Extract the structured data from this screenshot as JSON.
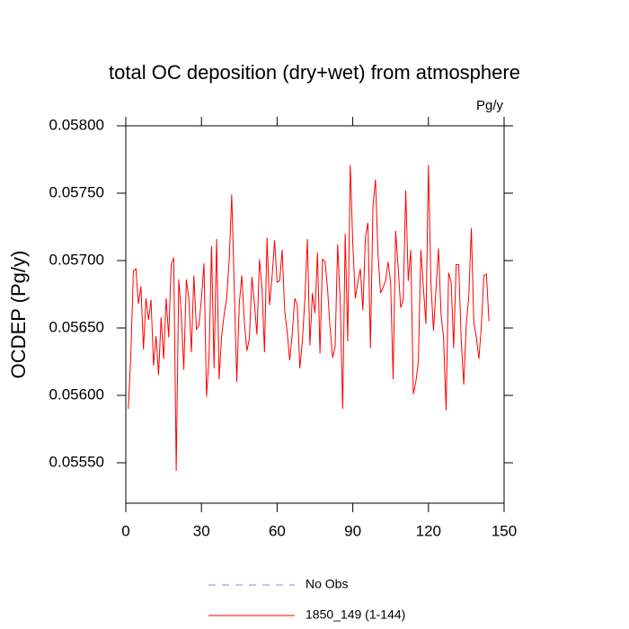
{
  "chart_data": {
    "type": "line",
    "title": "total OC deposition (dry+wet) from atmosphere",
    "units": "Pg/y",
    "y_label": "OCDEP  (Pg/y)",
    "xlim": [
      0,
      150
    ],
    "xticks": [
      0,
      30,
      60,
      90,
      120,
      150
    ],
    "ylim": [
      0.0552,
      0.058
    ],
    "yticks": [
      {
        "value": 0.0555,
        "label": "0.05550"
      },
      {
        "value": 0.056,
        "label": "0.05600"
      },
      {
        "value": 0.0565,
        "label": "0.05650"
      },
      {
        "value": 0.057,
        "label": "0.05700"
      },
      {
        "value": 0.0575,
        "label": "0.05750"
      },
      {
        "value": 0.058,
        "label": "0.05800"
      }
    ],
    "x": [
      1,
      2,
      3,
      4,
      5,
      6,
      7,
      8,
      9,
      10,
      11,
      12,
      13,
      14,
      15,
      16,
      17,
      18,
      19,
      20,
      21,
      22,
      23,
      24,
      25,
      26,
      27,
      28,
      29,
      30,
      31,
      32,
      33,
      34,
      35,
      36,
      37,
      38,
      39,
      40,
      41,
      42,
      43,
      44,
      45,
      46,
      47,
      48,
      49,
      50,
      51,
      52,
      53,
      54,
      55,
      56,
      57,
      58,
      59,
      60,
      61,
      62,
      63,
      64,
      65,
      66,
      67,
      68,
      69,
      70,
      71,
      72,
      73,
      74,
      75,
      76,
      77,
      78,
      79,
      80,
      81,
      82,
      83,
      84,
      85,
      86,
      87,
      88,
      89,
      90,
      91,
      92,
      93,
      94,
      95,
      96,
      97,
      98,
      99,
      100,
      101,
      102,
      103,
      104,
      105,
      106,
      107,
      108,
      109,
      110,
      111,
      112,
      113,
      114,
      115,
      116,
      117,
      118,
      119,
      120,
      121,
      122,
      123,
      124,
      125,
      126,
      127,
      128,
      129,
      130,
      131,
      132,
      133,
      134,
      135,
      136,
      137,
      138,
      139,
      140,
      141,
      142,
      143,
      144
    ],
    "series": [
      {
        "name": "1850_149 (1-144)",
        "color": "#ff0000",
        "values": [
          0.0559,
          0.0563,
          0.05692,
          0.05694,
          0.05668,
          0.05681,
          0.05634,
          0.05672,
          0.05656,
          0.05671,
          0.05622,
          0.05644,
          0.05615,
          0.05658,
          0.05627,
          0.05672,
          0.05643,
          0.05697,
          0.05702,
          0.05544,
          0.05686,
          0.0566,
          0.05619,
          0.05686,
          0.05672,
          0.05632,
          0.05689,
          0.05649,
          0.05652,
          0.05672,
          0.05698,
          0.05599,
          0.05628,
          0.05711,
          0.0562,
          0.05716,
          0.05612,
          0.05644,
          0.0566,
          0.05672,
          0.057,
          0.05749,
          0.05681,
          0.0561,
          0.05668,
          0.05689,
          0.05655,
          0.05633,
          0.05642,
          0.05688,
          0.05668,
          0.05645,
          0.05701,
          0.0568,
          0.05632,
          0.05717,
          0.05667,
          0.05688,
          0.05715,
          0.05684,
          0.05685,
          0.05708,
          0.05663,
          0.05647,
          0.05626,
          0.05646,
          0.05672,
          0.05667,
          0.0562,
          0.0564,
          0.05671,
          0.05716,
          0.05637,
          0.05676,
          0.05661,
          0.05706,
          0.05631,
          0.05701,
          0.05699,
          0.05679,
          0.0565,
          0.05628,
          0.05636,
          0.05712,
          0.05671,
          0.0559,
          0.0572,
          0.0564,
          0.05771,
          0.05713,
          0.05672,
          0.05684,
          0.05694,
          0.05663,
          0.05717,
          0.05728,
          0.05635,
          0.0574,
          0.0576,
          0.05705,
          0.05676,
          0.0568,
          0.05685,
          0.05699,
          0.05684,
          0.05612,
          0.05722,
          0.05695,
          0.05665,
          0.05671,
          0.05752,
          0.05685,
          0.05708,
          0.05601,
          0.0561,
          0.05625,
          0.05708,
          0.0568,
          0.05653,
          0.05771,
          0.05683,
          0.05648,
          0.05679,
          0.05709,
          0.0566,
          0.05643,
          0.05589,
          0.05691,
          0.05684,
          0.05635,
          0.05697,
          0.05697,
          0.05641,
          0.05608,
          0.05653,
          0.05673,
          0.05724,
          0.05654,
          0.05643,
          0.05627,
          0.05652,
          0.05689,
          0.0569,
          0.05655
        ]
      }
    ],
    "legend": [
      {
        "name": "No Obs",
        "color": "#8a8aff",
        "dashed": true
      }
    ]
  }
}
